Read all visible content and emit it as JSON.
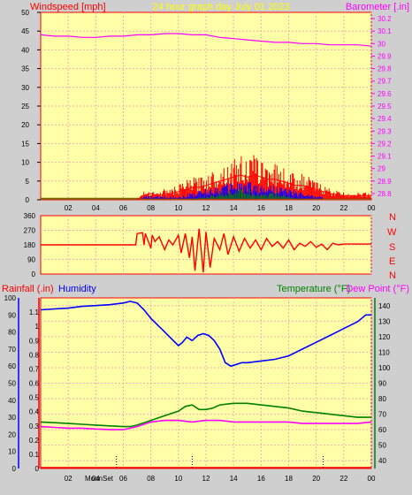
{
  "header": {
    "left_label": "Windspeed [mph]",
    "center_label": "24 hour graph day   July 01 2023",
    "right_label": "Barometer [.in]"
  },
  "colors": {
    "background": "#cfcfcf",
    "plot_fill": "#ffffa8",
    "grid": "#f0b0b0",
    "wind": "#ff0000",
    "wind_gust": "#0000ff",
    "wind_avg": "#008000",
    "barometer": "#ff00ff",
    "direction": "#ff0000",
    "humidity": "#0000ff",
    "temperature": "#008000",
    "dewpoint": "#ff00ff",
    "axis_red": "#ff0000",
    "axis_blue": "#0000ff",
    "axis_green": "#008000",
    "axis_magenta": "#ff00ff"
  },
  "chart_data": [
    {
      "type": "line",
      "name": "wind-barometer",
      "xlabel": "",
      "ylabel": "Windspeed [mph]",
      "y2label": "Barometer [.in]",
      "xlim": [
        0,
        24
      ],
      "ylim": [
        0,
        50
      ],
      "y2lim": [
        28.75,
        30.25
      ],
      "grid": true,
      "x_ticks": [
        "02",
        "04",
        "06",
        "08",
        "10",
        "12",
        "14",
        "16",
        "18",
        "20",
        "22",
        "00"
      ],
      "y_ticks": [
        "0",
        "5",
        "10",
        "15",
        "20",
        "25",
        "30",
        "35",
        "40",
        "45",
        "50"
      ],
      "y2_ticks": [
        "28.8",
        "28.9",
        "29",
        "29.1",
        "29.2",
        "29.3",
        "29.4",
        "29.5",
        "29.6",
        "29.7",
        "29.8",
        "29.9",
        "30",
        "30.1",
        "30.2"
      ],
      "series": [
        {
          "role": "barometer",
          "axis": "right",
          "x": [
            0,
            1,
            2,
            3,
            4,
            5,
            6,
            7,
            8,
            9,
            10,
            11,
            12,
            13,
            14,
            15,
            16,
            17,
            18,
            19,
            20,
            21,
            22,
            23,
            24
          ],
          "values": [
            30.07,
            30.06,
            30.06,
            30.05,
            30.05,
            30.06,
            30.06,
            30.07,
            30.07,
            30.08,
            30.08,
            30.07,
            30.07,
            30.05,
            30.04,
            30.03,
            30.02,
            30.01,
            30.01,
            30.0,
            30.0,
            29.99,
            29.99,
            29.99,
            29.98
          ]
        },
        {
          "role": "wind_gust_max",
          "axis": "left",
          "x": [
            0,
            2,
            4,
            6,
            7.0,
            7.4,
            8,
            8.5,
            9,
            9.5,
            10,
            10.5,
            11,
            11.5,
            12,
            12.5,
            13,
            13.5,
            14,
            14.5,
            15,
            15.5,
            16,
            16.5,
            17,
            17.5,
            18,
            18.5,
            19,
            19.5,
            20,
            20.5,
            21,
            22,
            23,
            24
          ],
          "values": [
            0,
            0,
            0,
            0,
            0,
            2,
            3,
            2,
            3,
            3,
            4,
            5,
            6,
            6,
            7,
            8,
            9,
            10,
            11,
            12,
            11,
            12,
            11,
            10,
            10,
            9,
            8,
            7,
            7,
            6,
            5,
            4,
            3,
            2,
            2,
            2
          ]
        },
        {
          "role": "wind_speed",
          "axis": "left",
          "x": [
            7.4,
            8,
            9,
            10,
            11,
            12,
            13,
            14,
            15,
            16,
            17,
            18,
            19,
            20,
            20.5
          ],
          "values": [
            1,
            1,
            1,
            1,
            2,
            3,
            4,
            5,
            5,
            4,
            4,
            3,
            2,
            1,
            1
          ]
        },
        {
          "role": "wind_avg",
          "axis": "left",
          "x": [
            11,
            12,
            13,
            14,
            15,
            16,
            17,
            18,
            19
          ],
          "values": [
            0,
            1,
            2,
            3,
            3,
            2,
            2,
            1,
            0
          ]
        }
      ]
    },
    {
      "type": "line",
      "name": "wind-direction",
      "xlim": [
        0,
        24
      ],
      "ylim": [
        0,
        360
      ],
      "grid": true,
      "y_ticks": [
        "0",
        "90",
        "180",
        "270",
        "360"
      ],
      "direction_labels": [
        "N",
        "W",
        "S",
        "E",
        "N"
      ],
      "series": [
        {
          "role": "direction",
          "x": [
            0,
            1,
            2,
            3,
            4,
            5,
            6,
            6.9,
            7.0,
            7.4,
            7.5,
            7.6,
            8.0,
            8.1,
            8.3,
            8.6,
            9.0,
            9.3,
            9.6,
            10.0,
            10.2,
            10.5,
            10.8,
            11.0,
            11.2,
            11.5,
            11.8,
            12.0,
            12.3,
            12.6,
            13.0,
            13.3,
            13.6,
            14.0,
            14.4,
            14.8,
            15.2,
            15.6,
            16.0,
            16.4,
            16.8,
            17.2,
            17.6,
            18.0,
            18.4,
            18.8,
            19.2,
            19.6,
            20.0,
            20.4,
            20.8,
            21.2,
            21.6,
            22,
            23,
            24
          ],
          "values": [
            180,
            180,
            180,
            180,
            180,
            180,
            180,
            180,
            250,
            255,
            180,
            250,
            160,
            240,
            200,
            230,
            150,
            210,
            180,
            240,
            130,
            250,
            100,
            230,
            20,
            280,
            10,
            260,
            40,
            220,
            150,
            250,
            120,
            230,
            140,
            220,
            160,
            210,
            150,
            220,
            170,
            200,
            160,
            210,
            150,
            190,
            170,
            200,
            165,
            185,
            150,
            190,
            180,
            185,
            185,
            185
          ]
        }
      ]
    },
    {
      "type": "line",
      "name": "rain-humidity-temperature",
      "ylabel": "Rainfall (.in)",
      "ylabel2": "Humidity",
      "y2label": "Temperature (°F)",
      "y2label2": "Dew Point (°F)",
      "xlim": [
        0,
        24
      ],
      "ylim": [
        0,
        1.2
      ],
      "y_humidity_lim": [
        0,
        100
      ],
      "y2lim": [
        35,
        145
      ],
      "grid": true,
      "x_ticks": [
        "02",
        "04",
        "06",
        "08",
        "10",
        "12",
        "14",
        "16",
        "18",
        "20",
        "22",
        "00"
      ],
      "y_rain_ticks": [
        "0",
        "0.1",
        "0.2",
        "0.3",
        "0.4",
        "0.5",
        "0.6",
        "0.7",
        "0.8",
        "0.9",
        "1",
        "1.1"
      ],
      "y_humidity_ticks": [
        "0",
        "10",
        "20",
        "30",
        "40",
        "50",
        "60",
        "70",
        "80",
        "90",
        "100"
      ],
      "y2_ticks": [
        "40",
        "50",
        "60",
        "70",
        "80",
        "90",
        "100",
        "110",
        "120",
        "130",
        "140"
      ],
      "moon_label": "MoonSet",
      "series": [
        {
          "role": "humidity",
          "axis": "humidity",
          "x": [
            0,
            1,
            2,
            3,
            4,
            5,
            6,
            6.5,
            7,
            7.5,
            8,
            8.5,
            9,
            9.5,
            10,
            10.3,
            10.6,
            11,
            11.4,
            11.8,
            12.2,
            12.6,
            13,
            13.4,
            13.8,
            14.2,
            14.6,
            15,
            16,
            17,
            18,
            19,
            20,
            21,
            22,
            23,
            23.6,
            24
          ],
          "values": [
            93,
            93.5,
            94,
            95,
            95.5,
            96,
            97,
            98,
            97,
            93,
            88,
            84,
            80,
            76,
            72,
            74,
            77,
            75,
            78,
            79,
            78,
            75,
            70,
            62,
            60,
            61,
            62,
            62,
            63,
            64,
            66,
            70,
            74,
            78,
            82,
            86,
            90,
            90
          ]
        },
        {
          "role": "temperature",
          "axis": "right",
          "x": [
            0,
            1,
            2,
            3,
            4,
            5,
            6,
            6.5,
            7,
            8,
            9,
            10,
            10.5,
            11,
            11.5,
            12,
            12.5,
            13,
            14,
            15,
            16,
            17,
            18,
            19,
            20,
            21,
            22,
            23,
            24
          ],
          "values": [
            65,
            64.5,
            64,
            63.5,
            63,
            62.5,
            62,
            62,
            63,
            66,
            69,
            72,
            75,
            76,
            73,
            73,
            74,
            76,
            77,
            77,
            76,
            75,
            74,
            72,
            71,
            70,
            69,
            68,
            68
          ]
        },
        {
          "role": "dewpoint",
          "axis": "right",
          "x": [
            0,
            1,
            2,
            3,
            4,
            5,
            6,
            6.5,
            7,
            8,
            9,
            10,
            11,
            12,
            13,
            14,
            15,
            16,
            17,
            18,
            19,
            20,
            21,
            22,
            23,
            24
          ],
          "values": [
            62,
            61.5,
            61,
            61,
            60.5,
            60,
            60,
            61,
            62,
            65,
            66,
            66,
            65,
            66,
            66,
            65,
            65,
            65,
            65,
            65,
            64,
            64,
            64,
            64,
            64,
            65
          ]
        }
      ]
    }
  ]
}
